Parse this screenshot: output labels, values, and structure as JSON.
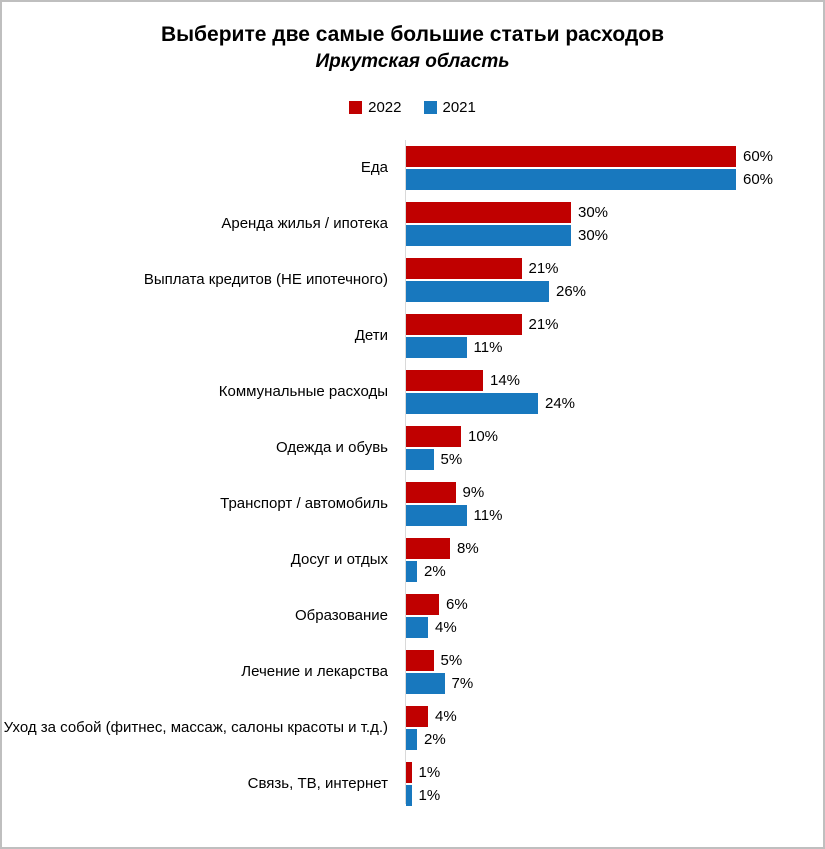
{
  "title": "Выберите две самые большие статьи расходов",
  "subtitle": "Иркутская область",
  "colors": {
    "series_2022": "#c00000",
    "series_2021": "#1878be",
    "axis_line": "#d9d9d9",
    "frame_border": "#bfbfbf"
  },
  "chart_data": {
    "type": "bar",
    "orientation": "horizontal",
    "title": "Выберите две самые большие статьи расходов",
    "subtitle": "Иркутская область",
    "legend_position": "top-center",
    "value_suffix": "%",
    "xlim": [
      0,
      65
    ],
    "categories": [
      "Еда",
      "Аренда жилья / ипотека",
      "Выплата кредитов (НЕ ипотечного)",
      "Дети",
      "Коммунальные расходы",
      "Одежда и обувь",
      "Транспорт / автомобиль",
      "Досуг и отдых",
      "Образование",
      "Лечение и лекарства",
      "Уход за собой (фитнес, массаж, салоны красоты и т.д.)",
      "Связь, ТВ, интернет"
    ],
    "series": [
      {
        "name": "2022",
        "color": "#c00000",
        "values": [
          60,
          30,
          21,
          21,
          14,
          10,
          9,
          8,
          6,
          5,
          4,
          1
        ]
      },
      {
        "name": "2021",
        "color": "#1878be",
        "values": [
          60,
          30,
          26,
          11,
          24,
          5,
          11,
          2,
          4,
          7,
          2,
          1
        ]
      }
    ]
  }
}
